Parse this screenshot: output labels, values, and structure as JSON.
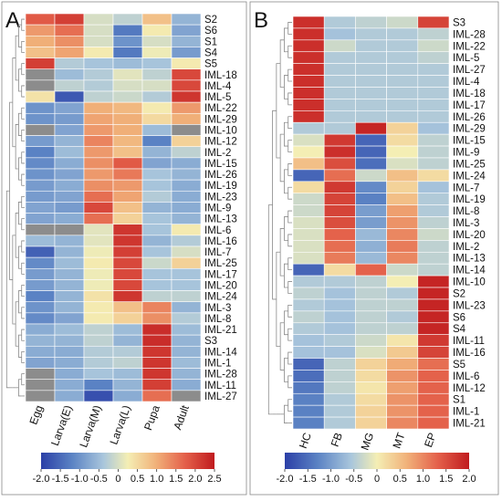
{
  "chart_data": [
    {
      "type": "heatmap",
      "panel_label": "A",
      "columns": [
        "Egg",
        "Larva(E)",
        "Larva(M)",
        "Larva(L)",
        "Pupa",
        "Adult"
      ],
      "rows": [
        "S2",
        "S6",
        "S1",
        "S4",
        "S5",
        "IML-18",
        "IML-4",
        "IML-5",
        "IML-22",
        "IML-29",
        "IML-10",
        "IML-12",
        "IML-2",
        "IML-15",
        "IML-26",
        "IML-19",
        "IML-23",
        "IML-9",
        "IML-13",
        "IML-6",
        "IML-16",
        "IML-7",
        "IML-25",
        "IML-17",
        "IML-20",
        "IML-24",
        "IML-3",
        "IML-8",
        "IML-21",
        "S3",
        "IML-14",
        "IML-1",
        "IML-28",
        "IML-11",
        "IML-27"
      ],
      "values": [
        [
          1.8,
          2.1,
          0.0,
          -0.2,
          0.8,
          -0.6
        ],
        [
          1.2,
          1.6,
          0.0,
          -1.3,
          0.3,
          -0.8
        ],
        [
          1.0,
          1.3,
          0.0,
          -1.0,
          0.0,
          -0.6
        ],
        [
          0.8,
          1.1,
          0.3,
          -1.3,
          0.2,
          -0.9
        ],
        [
          2.1,
          -0.3,
          -0.4,
          -0.5,
          -0.4,
          0.3
        ],
        [
          null,
          -0.5,
          -0.3,
          0.1,
          -0.2,
          2.0
        ],
        [
          null,
          -0.2,
          -0.3,
          0.0,
          0.0,
          2.0
        ],
        [
          0.4,
          -1.7,
          -0.2,
          -0.1,
          -0.3,
          2.2
        ],
        [
          -1.0,
          -0.8,
          1.0,
          0.9,
          0.3,
          1.2
        ],
        [
          -1.0,
          -0.9,
          1.1,
          1.0,
          0.5,
          1.0
        ],
        [
          null,
          -0.8,
          1.2,
          1.0,
          -0.5,
          null
        ],
        [
          -0.9,
          -0.6,
          1.4,
          0.9,
          -1.2,
          0.6
        ],
        [
          -1.2,
          -0.5,
          1.2,
          0.8,
          -0.6,
          -0.2
        ],
        [
          -1.1,
          -0.7,
          1.3,
          1.8,
          -0.8,
          -0.7
        ],
        [
          -1.0,
          -0.8,
          1.2,
          1.5,
          -0.4,
          -0.6
        ],
        [
          -0.9,
          -0.7,
          1.3,
          1.2,
          -0.4,
          -0.7
        ],
        [
          -0.9,
          -0.8,
          1.6,
          1.1,
          -0.3,
          -0.7
        ],
        [
          -0.8,
          -0.9,
          2.0,
          0.8,
          -0.6,
          -0.7
        ],
        [
          -0.8,
          -0.7,
          1.6,
          0.6,
          -0.4,
          -0.6
        ],
        [
          null,
          null,
          0.1,
          2.2,
          -0.4,
          0.3
        ],
        [
          -0.5,
          -0.6,
          0.1,
          2.2,
          -0.6,
          -0.3
        ],
        [
          -1.6,
          -0.6,
          0.2,
          2.1,
          -0.4,
          0.0
        ],
        [
          -1.1,
          -0.5,
          0.3,
          2.0,
          -0.1,
          0.6
        ],
        [
          -0.9,
          -0.6,
          0.2,
          2.0,
          -0.4,
          -0.4
        ],
        [
          -0.9,
          -0.6,
          0.2,
          2.0,
          -0.4,
          -0.4
        ],
        [
          -1.2,
          -0.6,
          0.4,
          2.2,
          -0.2,
          -0.2
        ],
        [
          -1.0,
          -0.6,
          0.3,
          0.8,
          1.4,
          -0.6
        ],
        [
          -1.1,
          -0.8,
          0.3,
          0.6,
          1.3,
          -0.3
        ],
        [
          -0.7,
          -0.5,
          -0.2,
          -0.5,
          2.3,
          -0.5
        ],
        [
          -0.6,
          -0.6,
          -0.2,
          -0.6,
          2.3,
          -0.6
        ],
        [
          -0.7,
          -0.7,
          -0.3,
          -0.3,
          2.2,
          -0.6
        ],
        [
          -0.8,
          -0.7,
          -0.3,
          -0.2,
          2.2,
          -0.5
        ],
        [
          null,
          -0.7,
          -0.4,
          -0.5,
          2.2,
          -0.6
        ],
        [
          null,
          -0.7,
          -1.2,
          -0.6,
          2.1,
          -0.7
        ],
        [
          null,
          -0.7,
          -1.8,
          -0.7,
          1.6,
          null
        ]
      ],
      "missing_color": "#8c8c8c",
      "colorbar": {
        "min": -2.0,
        "max": 2.5,
        "ticks": [
          "-2.0",
          "-1.5",
          "-1.0",
          "-0.5",
          "0",
          "0.5",
          "1.0",
          "1.5",
          "2.0",
          "2.5"
        ]
      }
    },
    {
      "type": "heatmap",
      "panel_label": "B",
      "columns": [
        "HC",
        "FB",
        "MG",
        "MT",
        "EP"
      ],
      "rows": [
        "S3",
        "IML-28",
        "IML-22",
        "IML-5",
        "IML-27",
        "IML-4",
        "IML-18",
        "IML-17",
        "IML-26",
        "IML-29",
        "IML-15",
        "IML-9",
        "IML-25",
        "IML-24",
        "IML-7",
        "IML-19",
        "IML-8",
        "IML-3",
        "IML-20",
        "IML-2",
        "IML-13",
        "IML-14",
        "IML-10",
        "S2",
        "IML-23",
        "S6",
        "S4",
        "IML-11",
        "IML-16",
        "S5",
        "IML-6",
        "IML-12",
        "S1",
        "IML-1",
        "IML-21"
      ],
      "values": [
        [
          1.8,
          -0.5,
          -0.4,
          -0.3,
          1.6
        ],
        [
          1.8,
          -0.6,
          -0.5,
          -0.5,
          -0.4
        ],
        [
          1.8,
          -0.3,
          -0.5,
          -0.5,
          -0.3
        ],
        [
          1.8,
          -0.5,
          -0.5,
          -0.5,
          -0.4
        ],
        [
          1.8,
          -0.5,
          -0.5,
          -0.5,
          -0.5
        ],
        [
          1.8,
          -0.5,
          -0.5,
          -0.5,
          -0.5
        ],
        [
          1.8,
          -0.5,
          -0.5,
          -0.5,
          -0.5
        ],
        [
          1.8,
          -0.5,
          -0.5,
          -0.5,
          -0.5
        ],
        [
          1.8,
          -0.5,
          -0.5,
          -0.5,
          -0.5
        ],
        [
          -0.5,
          -0.5,
          1.9,
          0.3,
          -0.6
        ],
        [
          -0.2,
          1.7,
          -1.6,
          0.2,
          -0.4
        ],
        [
          0.0,
          1.8,
          -1.6,
          0.0,
          -0.4
        ],
        [
          0.5,
          1.5,
          -1.5,
          -0.2,
          -0.4
        ],
        [
          -1.6,
          1.2,
          -0.3,
          0.5,
          0.2
        ],
        [
          0.2,
          1.7,
          -1.2,
          0.3,
          -0.6
        ],
        [
          -0.3,
          1.6,
          -1.3,
          0.5,
          -0.5
        ],
        [
          -0.3,
          1.6,
          -1.0,
          0.8,
          -0.5
        ],
        [
          -0.2,
          1.5,
          -1.0,
          0.9,
          -0.4
        ],
        [
          -0.2,
          1.3,
          -0.7,
          1.0,
          -0.3
        ],
        [
          -0.2,
          1.2,
          -0.8,
          1.1,
          -0.4
        ],
        [
          -0.2,
          1.1,
          -0.7,
          1.0,
          -0.4
        ],
        [
          -1.6,
          0.2,
          1.3,
          -0.3,
          -0.4
        ],
        [
          -0.5,
          -0.5,
          -0.4,
          0.0,
          1.9
        ],
        [
          -0.4,
          -0.6,
          -0.4,
          -0.5,
          1.9
        ],
        [
          -0.5,
          -0.6,
          -0.4,
          -0.4,
          1.9
        ],
        [
          -0.4,
          -0.6,
          -0.4,
          -0.5,
          1.9
        ],
        [
          -0.5,
          -0.6,
          -0.4,
          -0.4,
          1.9
        ],
        [
          -0.6,
          -0.5,
          -0.3,
          0.1,
          1.7
        ],
        [
          -0.6,
          -0.6,
          -0.2,
          0.4,
          1.6
        ],
        [
          -1.6,
          -0.4,
          0.3,
          0.7,
          1.2
        ],
        [
          -1.5,
          -0.4,
          0.2,
          0.9,
          1.3
        ],
        [
          -1.4,
          -0.4,
          0.1,
          0.8,
          1.3
        ],
        [
          -1.3,
          -0.5,
          0.2,
          0.9,
          1.3
        ],
        [
          -1.3,
          -0.5,
          0.3,
          0.9,
          1.3
        ],
        [
          -1.3,
          -0.5,
          0.3,
          1.0,
          1.3
        ]
      ],
      "colorbar": {
        "min": -2.0,
        "max": 2.0,
        "ticks": [
          "-2.0",
          "-1.5",
          "-1.0",
          "-0.5",
          "0",
          "0.5",
          "1.0",
          "1.5",
          "2.0"
        ]
      }
    }
  ]
}
